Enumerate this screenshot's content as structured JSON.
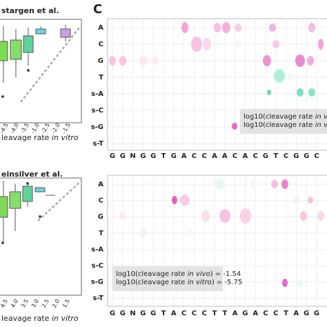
{
  "left_panels": [
    {
      "title": "stargen et al.",
      "xlabel": [
        "leavage rate ",
        "in vitro"
      ],
      "xticks": [
        "-4.5",
        "-4.0",
        "-3.5",
        "-1.0",
        "-2.5",
        "-2.0",
        "-1.5"
      ]
    },
    {
      "title": "einsilver et al.",
      "xlabel": [
        "leavage rate ",
        "in vitro"
      ],
      "xticks": [
        "4.5",
        "4.0",
        "3.5",
        "3.0",
        "2.5",
        "2.0",
        "1.5"
      ]
    }
  ],
  "panel_c": {
    "label": "C",
    "grids": [
      {
        "rows": [
          "A",
          "C",
          "G",
          "T",
          "s-A",
          "s-C",
          "s-G",
          "s-T"
        ],
        "columns": [
          "G",
          "G",
          "N",
          "G",
          "G",
          "T",
          "G",
          "A",
          "C",
          "C",
          "A",
          "A",
          "C",
          "A",
          "C",
          "G",
          "T",
          "C",
          "G",
          "G",
          "C"
        ],
        "legend": [
          [
            "log10(cleavage rate ",
            "in vivo",
            ") ="
          ],
          [
            "log10(cleavage rate ",
            "in vitro",
            ")"
          ]
        ]
      },
      {
        "rows": [
          "A",
          "C",
          "G",
          "T",
          "s-A",
          "s-C",
          "s-G",
          "s-T"
        ],
        "columns": [
          "G",
          "G",
          "N",
          "G",
          "G",
          "T",
          "A",
          "C",
          "C",
          "C",
          "T",
          "T",
          "A",
          "G",
          "A",
          "C",
          "C",
          "T",
          "A",
          "G",
          "G"
        ],
        "legend": [
          [
            "log10(cleavage rate ",
            "in vivo",
            ")  = -1.54"
          ],
          [
            "log10(cleavage rate ",
            "in vitro",
            ")  = -5.75"
          ]
        ]
      }
    ]
  }
}
